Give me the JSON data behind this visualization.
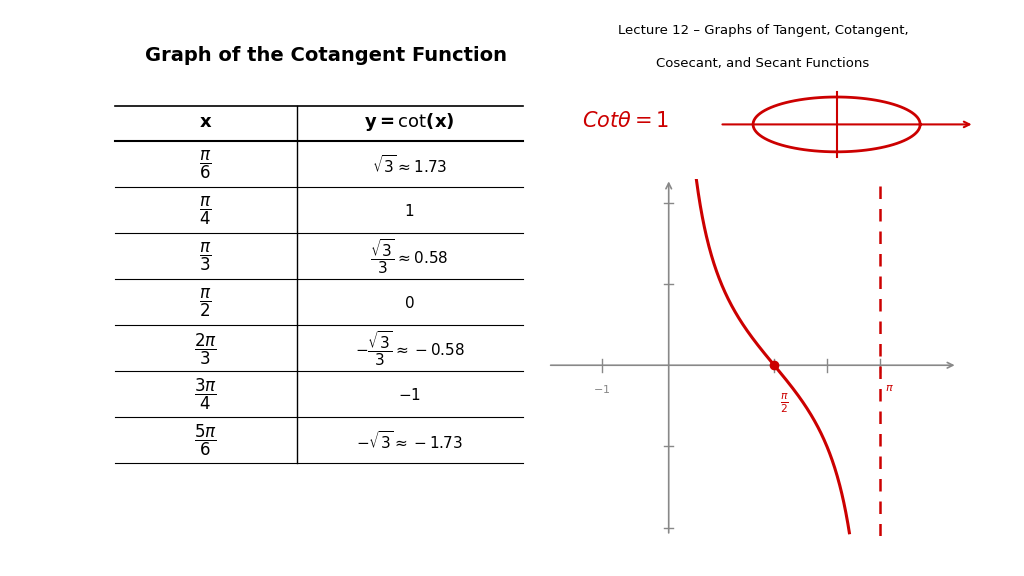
{
  "title": "Graph of the Cotangent Function",
  "lecture_title_line1": "Lecture 12 – Graphs of Tangent, Cotangent,",
  "lecture_title_line2": "Cosecant, and Secant Functions",
  "bg_color": "#ffffff",
  "red_color": "#cc0000",
  "gray_color": "#888888"
}
